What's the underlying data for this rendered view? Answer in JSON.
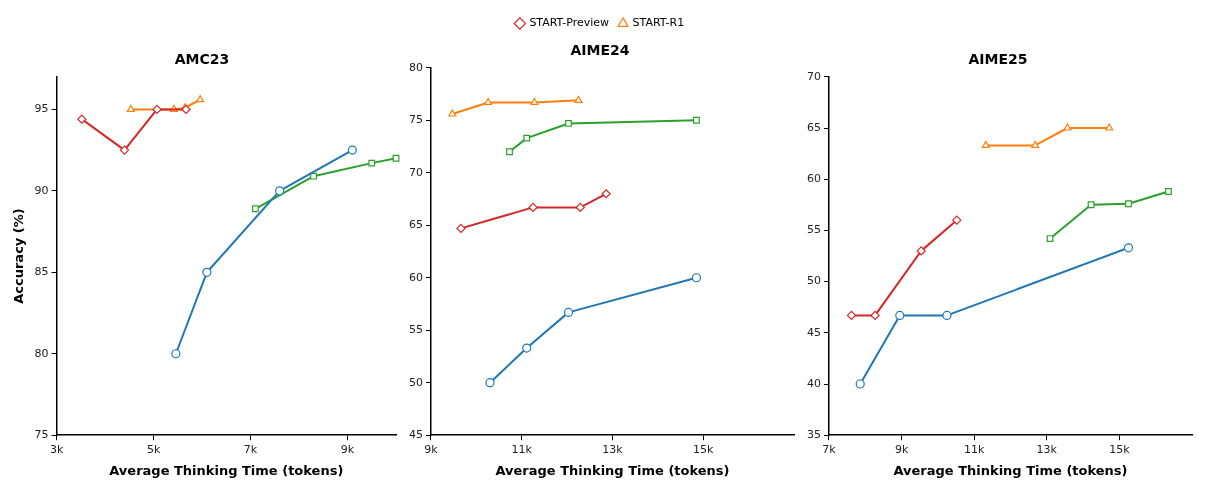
{
  "chart_data": [
    {
      "type": "line",
      "title": "AMC23",
      "xlabel": "Average Thinking Time (tokens)",
      "ylabel": "Accuracy (%)",
      "xlim": [
        3000,
        10000
      ],
      "xticks": [
        {
          "value": 3000,
          "label": "3k"
        },
        {
          "value": 5000,
          "label": "5k"
        },
        {
          "value": 7000,
          "label": "7k"
        },
        {
          "value": 9000,
          "label": "9k"
        }
      ],
      "ylim": [
        75,
        97
      ],
      "yticks": [
        75,
        80,
        85,
        90,
        95
      ],
      "grid": false,
      "legend": false,
      "series": [
        {
          "color": "#1f77b4",
          "marker": "circle",
          "x": [
            5460,
            6100,
            7600,
            9100
          ],
          "values": [
            80,
            85,
            90,
            92.5
          ]
        },
        {
          "color": "#2ca02c",
          "marker": "square",
          "x": [
            7100,
            8300,
            9500,
            10000
          ],
          "values": [
            88.9,
            90.9,
            91.7,
            92
          ]
        },
        {
          "color": "#d62728",
          "marker": "diamond",
          "x": [
            3520,
            4400,
            5070,
            5670
          ],
          "values": [
            94.4,
            92.5,
            95,
            95
          ]
        },
        {
          "color": "#ff7f0e",
          "marker": "triangle",
          "x": [
            4530,
            5420,
            5650,
            5960
          ],
          "values": [
            95,
            95,
            95.1,
            95.6
          ]
        }
      ]
    },
    {
      "type": "line",
      "title": "AIME24",
      "xlabel": "Average Thinking Time (tokens)",
      "xlim": [
        9000,
        17000
      ],
      "xticks": [
        {
          "value": 9000,
          "label": "9k"
        },
        {
          "value": 11000,
          "label": "11k"
        },
        {
          "value": 13000,
          "label": "13k"
        },
        {
          "value": 15000,
          "label": "15k"
        }
      ],
      "ylim": [
        45,
        80
      ],
      "yticks": [
        45,
        50,
        55,
        60,
        65,
        70,
        75,
        80
      ],
      "grid": false,
      "legend": "top",
      "series": [
        {
          "color": "#1f77b4",
          "marker": "circle",
          "x": [
            10300,
            11110,
            12030,
            14850
          ],
          "values": [
            50,
            53.3,
            56.7,
            60
          ]
        },
        {
          "color": "#2ca02c",
          "marker": "square",
          "x": [
            10730,
            11110,
            12030,
            14850
          ],
          "values": [
            72,
            73.3,
            74.7,
            75
          ]
        },
        {
          "name": "START-Preview",
          "color": "#d62728",
          "marker": "diamond",
          "x": [
            9660,
            11250,
            12290,
            12860
          ],
          "values": [
            64.7,
            66.7,
            66.7,
            68
          ]
        },
        {
          "name": "START-R1",
          "color": "#ff7f0e",
          "marker": "triangle",
          "x": [
            9470,
            10260,
            11280,
            12250
          ],
          "values": [
            75.6,
            76.7,
            76.7,
            76.9
          ]
        }
      ]
    },
    {
      "type": "line",
      "title": "AIME25",
      "xlabel": "Average Thinking Time (tokens)",
      "xlim": [
        7000,
        17000
      ],
      "xticks": [
        {
          "value": 7000,
          "label": "7k"
        },
        {
          "value": 9000,
          "label": "9k"
        },
        {
          "value": 11000,
          "label": "11k"
        },
        {
          "value": 13000,
          "label": "13k"
        },
        {
          "value": 15000,
          "label": "15k"
        }
      ],
      "ylim": [
        35,
        70
      ],
      "yticks": [
        35,
        40,
        45,
        50,
        55,
        60,
        65,
        70
      ],
      "grid": false,
      "legend": false,
      "series": [
        {
          "color": "#1f77b4",
          "marker": "circle",
          "x": [
            7860,
            8950,
            10250,
            15250
          ],
          "values": [
            40,
            46.7,
            46.7,
            53.3
          ]
        },
        {
          "color": "#2ca02c",
          "marker": "square",
          "x": [
            13090,
            14220,
            15250,
            16350
          ],
          "values": [
            54.2,
            57.5,
            57.6,
            58.8
          ]
        },
        {
          "color": "#d62728",
          "marker": "diamond",
          "x": [
            7620,
            8270,
            9540,
            10520
          ],
          "values": [
            46.7,
            46.7,
            53,
            56
          ]
        },
        {
          "color": "#ff7f0e",
          "marker": "triangle",
          "x": [
            11320,
            12680,
            13570,
            14720
          ],
          "values": [
            63.3,
            63.3,
            65,
            65
          ]
        }
      ]
    }
  ]
}
